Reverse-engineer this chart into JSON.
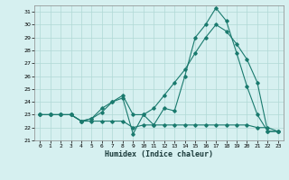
{
  "xlabel": "Humidex (Indice chaleur)",
  "bg_color": "#d6f0f0",
  "line_color": "#1a7a6e",
  "grid_color": "#b0d8d5",
  "xlim": [
    -0.5,
    23.5
  ],
  "ylim": [
    21,
    31.5
  ],
  "yticks": [
    21,
    22,
    23,
    24,
    25,
    26,
    27,
    28,
    29,
    30,
    31
  ],
  "xticks": [
    0,
    1,
    2,
    3,
    4,
    5,
    6,
    7,
    8,
    9,
    10,
    11,
    12,
    13,
    14,
    15,
    16,
    17,
    18,
    19,
    20,
    21,
    22,
    23
  ],
  "series1_x": [
    0,
    1,
    2,
    3,
    4,
    5,
    6,
    7,
    8,
    9,
    10,
    11,
    12,
    13,
    14,
    15,
    16,
    17,
    18,
    19,
    20,
    21,
    22,
    23
  ],
  "series1_y": [
    23.0,
    23.0,
    23.0,
    23.0,
    22.5,
    22.5,
    22.5,
    22.5,
    22.5,
    22.0,
    22.2,
    22.2,
    22.2,
    22.2,
    22.2,
    22.2,
    22.2,
    22.2,
    22.2,
    22.2,
    22.2,
    22.0,
    22.0,
    21.7
  ],
  "series2_x": [
    0,
    1,
    2,
    3,
    4,
    5,
    6,
    7,
    8,
    9,
    10,
    11,
    12,
    13,
    14,
    15,
    16,
    17,
    18,
    19,
    20,
    21,
    22,
    23
  ],
  "series2_y": [
    23.0,
    23.0,
    23.0,
    23.0,
    22.5,
    22.7,
    23.2,
    24.0,
    24.3,
    21.5,
    23.0,
    22.2,
    23.5,
    23.3,
    26.0,
    29.0,
    30.0,
    31.3,
    30.3,
    27.8,
    25.2,
    23.0,
    21.7,
    21.7
  ],
  "series3_x": [
    0,
    1,
    2,
    3,
    4,
    5,
    6,
    7,
    8,
    9,
    10,
    11,
    12,
    13,
    14,
    15,
    16,
    17,
    18,
    19,
    20,
    21,
    22,
    23
  ],
  "series3_y": [
    23.0,
    23.0,
    23.0,
    23.0,
    22.5,
    22.7,
    23.5,
    24.0,
    24.5,
    23.0,
    23.0,
    23.5,
    24.5,
    25.5,
    26.5,
    27.8,
    29.0,
    30.0,
    29.5,
    28.5,
    27.3,
    25.5,
    21.7,
    21.7
  ]
}
